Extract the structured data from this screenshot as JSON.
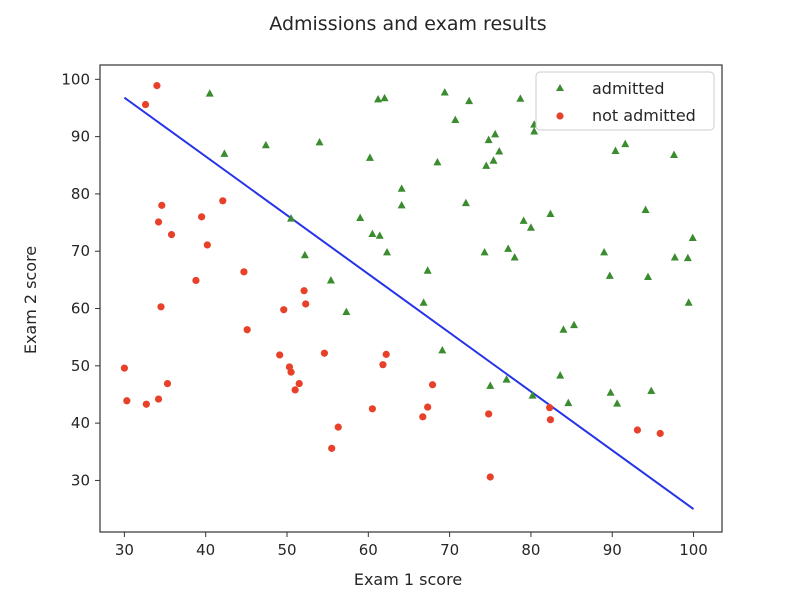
{
  "chart_data": {
    "type": "scatter",
    "title": "Admissions and exam results",
    "xlabel": "Exam 1 score",
    "ylabel": "Exam 2 score",
    "xlim": [
      27,
      103.5
    ],
    "ylim": [
      21,
      102.5
    ],
    "xticks": [
      30,
      40,
      50,
      60,
      70,
      80,
      90,
      100
    ],
    "yticks": [
      30,
      40,
      50,
      60,
      70,
      80,
      90,
      100
    ],
    "grid": false,
    "legend_position": "top-right",
    "series": [
      {
        "name": "admitted",
        "marker": "triangle",
        "color": "#3a8c2f",
        "points": [
          [
            40.5,
            97.5
          ],
          [
            42.3,
            87.0
          ],
          [
            47.4,
            88.5
          ],
          [
            54.0,
            89.0
          ],
          [
            50.5,
            75.7
          ],
          [
            52.2,
            69.3
          ],
          [
            55.4,
            64.9
          ],
          [
            57.3,
            59.4
          ],
          [
            59.0,
            75.8
          ],
          [
            60.2,
            86.3
          ],
          [
            60.5,
            73.0
          ],
          [
            61.2,
            96.5
          ],
          [
            61.4,
            72.7
          ],
          [
            62.0,
            96.7
          ],
          [
            62.3,
            69.8
          ],
          [
            64.1,
            80.9
          ],
          [
            64.1,
            78.0
          ],
          [
            66.8,
            61.0
          ],
          [
            67.3,
            66.6
          ],
          [
            68.5,
            85.5
          ],
          [
            69.1,
            52.7
          ],
          [
            69.4,
            97.7
          ],
          [
            70.7,
            92.9
          ],
          [
            72.0,
            78.4
          ],
          [
            72.4,
            96.2
          ],
          [
            74.3,
            69.8
          ],
          [
            74.5,
            84.9
          ],
          [
            74.8,
            89.4
          ],
          [
            75.0,
            46.5
          ],
          [
            75.4,
            85.8
          ],
          [
            75.6,
            90.4
          ],
          [
            76.1,
            87.4
          ],
          [
            77.2,
            70.4
          ],
          [
            77.0,
            47.6
          ],
          [
            78.0,
            68.9
          ],
          [
            78.7,
            96.6
          ],
          [
            79.1,
            75.3
          ],
          [
            80.0,
            74.1
          ],
          [
            80.2,
            44.8
          ],
          [
            80.4,
            92.1
          ],
          [
            80.4,
            90.9
          ],
          [
            82.4,
            76.5
          ],
          [
            83.6,
            48.3
          ],
          [
            84.0,
            56.3
          ],
          [
            84.6,
            43.5
          ],
          [
            85.3,
            57.1
          ],
          [
            89.0,
            69.8
          ],
          [
            89.7,
            65.7
          ],
          [
            89.8,
            45.3
          ],
          [
            90.4,
            87.5
          ],
          [
            90.6,
            43.4
          ],
          [
            91.6,
            88.7
          ],
          [
            94.1,
            77.2
          ],
          [
            94.4,
            65.5
          ],
          [
            94.8,
            45.6
          ],
          [
            97.6,
            86.8
          ],
          [
            97.7,
            68.9
          ],
          [
            99.3,
            68.8
          ],
          [
            99.4,
            61.0
          ],
          [
            99.9,
            72.3
          ]
        ]
      },
      {
        "name": "not admitted",
        "marker": "circle",
        "color": "#e8412a",
        "points": [
          [
            30.0,
            49.6
          ],
          [
            30.3,
            43.9
          ],
          [
            32.6,
            95.6
          ],
          [
            32.7,
            43.3
          ],
          [
            34.0,
            98.9
          ],
          [
            34.2,
            44.2
          ],
          [
            34.2,
            75.1
          ],
          [
            34.5,
            60.3
          ],
          [
            34.6,
            78.0
          ],
          [
            35.3,
            46.9
          ],
          [
            35.8,
            72.9
          ],
          [
            38.8,
            64.9
          ],
          [
            39.5,
            76.0
          ],
          [
            40.2,
            71.1
          ],
          [
            42.1,
            78.8
          ],
          [
            44.7,
            66.4
          ],
          [
            45.1,
            56.3
          ],
          [
            49.1,
            51.9
          ],
          [
            49.6,
            59.8
          ],
          [
            50.3,
            49.8
          ],
          [
            50.5,
            48.9
          ],
          [
            51.0,
            45.8
          ],
          [
            51.5,
            46.9
          ],
          [
            52.1,
            63.1
          ],
          [
            52.3,
            60.8
          ],
          [
            54.6,
            52.2
          ],
          [
            55.5,
            35.6
          ],
          [
            56.3,
            39.3
          ],
          [
            60.5,
            42.5
          ],
          [
            61.8,
            50.2
          ],
          [
            62.2,
            52.0
          ],
          [
            66.7,
            41.1
          ],
          [
            67.3,
            42.8
          ],
          [
            67.9,
            46.7
          ],
          [
            74.8,
            41.6
          ],
          [
            75.0,
            30.6
          ],
          [
            82.3,
            42.7
          ],
          [
            82.4,
            40.6
          ],
          [
            93.1,
            38.8
          ],
          [
            95.9,
            38.2
          ]
        ]
      }
    ],
    "decision_boundary": {
      "color": "#2633e8",
      "points": [
        [
          30.0,
          96.8
        ],
        [
          100.0,
          25.0
        ]
      ]
    }
  }
}
